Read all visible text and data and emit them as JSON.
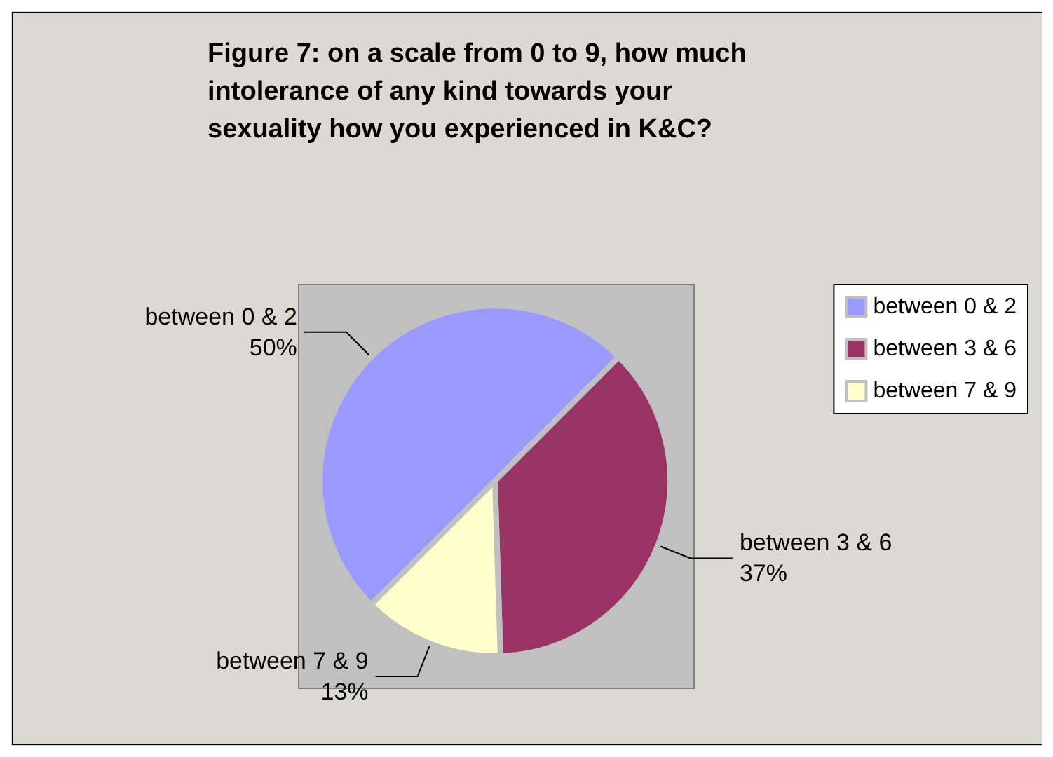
{
  "chart_data": {
    "type": "pie",
    "title": "Figure 7: on a scale from 0 to 9, how much intolerance of any kind towards your sexuality how you experienced in K&C?",
    "categories": [
      "between 0 & 2",
      "between 3 & 6",
      "between 7 & 9"
    ],
    "values": [
      50,
      37,
      13
    ],
    "colors": [
      "#9999ff",
      "#993366",
      "#ffffcc"
    ],
    "legend": "right",
    "value_labels": [
      "50%",
      "37%",
      "13%"
    ]
  }
}
